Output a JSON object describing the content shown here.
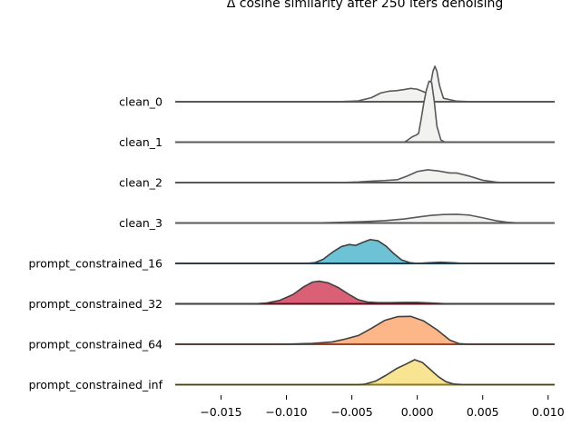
{
  "chart_data": {
    "type": "area",
    "title": "Δ cosine similarity after 250 iters denoising",
    "xlabel": "",
    "ylabel": "",
    "xlim": [
      -0.0185,
      0.0105
    ],
    "xticks": [
      -0.015,
      -0.01,
      -0.005,
      0.0,
      0.005,
      0.01
    ],
    "xtick_labels": [
      "−0.015",
      "−0.010",
      "−0.005",
      "0.000",
      "0.005",
      "0.010"
    ],
    "grid": false,
    "legend": "none",
    "series": [
      {
        "name": "clean_0",
        "fill": "#f2f2f0",
        "line": "#595959",
        "baseline": "#595959",
        "points": [
          [
            -0.0185,
            0
          ],
          [
            -0.006,
            0
          ],
          [
            -0.0045,
            0.03
          ],
          [
            -0.0035,
            0.14
          ],
          [
            -0.0028,
            0.3
          ],
          [
            -0.0022,
            0.36
          ],
          [
            -0.0016,
            0.38
          ],
          [
            -0.001,
            0.42
          ],
          [
            -0.0005,
            0.46
          ],
          [
            0.0,
            0.43
          ],
          [
            0.0004,
            0.36
          ],
          [
            0.0007,
            0.3
          ],
          [
            0.001,
            0.55
          ],
          [
            0.0012,
            1.05
          ],
          [
            0.00135,
            1.22
          ],
          [
            0.0015,
            1.05
          ],
          [
            0.0017,
            0.55
          ],
          [
            0.002,
            0.12
          ],
          [
            0.003,
            0.02
          ],
          [
            0.0045,
            0
          ],
          [
            0.0105,
            0
          ]
        ]
      },
      {
        "name": "clean_1",
        "fill": "#f2f2f0",
        "line": "#595959",
        "baseline": "#595959",
        "points": [
          [
            -0.0185,
            0
          ],
          [
            -0.001,
            0
          ],
          [
            -0.0008,
            0.05
          ],
          [
            -0.0004,
            0.18
          ],
          [
            -0.0001,
            0.24
          ],
          [
            0.0001,
            0.3
          ],
          [
            0.0003,
            0.8
          ],
          [
            0.0005,
            1.35
          ],
          [
            0.0007,
            1.8
          ],
          [
            0.0009,
            2.1
          ],
          [
            0.0011,
            2.05
          ],
          [
            0.0013,
            1.4
          ],
          [
            0.0015,
            0.55
          ],
          [
            0.0018,
            0.08
          ],
          [
            0.0021,
            0
          ],
          [
            0.0105,
            0
          ]
        ]
      },
      {
        "name": "clean_2",
        "fill": "#f2f2f0",
        "line": "#595959",
        "baseline": "#595959",
        "points": [
          [
            -0.0185,
            0
          ],
          [
            -0.006,
            0
          ],
          [
            -0.0045,
            0.02
          ],
          [
            -0.0035,
            0.05
          ],
          [
            -0.0025,
            0.07
          ],
          [
            -0.0015,
            0.1
          ],
          [
            -0.0008,
            0.22
          ],
          [
            0.0,
            0.38
          ],
          [
            0.0008,
            0.44
          ],
          [
            0.0016,
            0.4
          ],
          [
            0.0025,
            0.33
          ],
          [
            0.003,
            0.33
          ],
          [
            0.004,
            0.22
          ],
          [
            0.005,
            0.08
          ],
          [
            0.006,
            0.02
          ],
          [
            0.0065,
            0
          ],
          [
            0.0105,
            0
          ]
        ]
      },
      {
        "name": "clean_3",
        "fill": "#f2f2f0",
        "line": "#595959",
        "baseline": "#595959",
        "points": [
          [
            -0.0185,
            0
          ],
          [
            -0.008,
            0
          ],
          [
            -0.006,
            0.02
          ],
          [
            -0.004,
            0.05
          ],
          [
            -0.0025,
            0.08
          ],
          [
            -0.001,
            0.14
          ],
          [
            0.0,
            0.2
          ],
          [
            0.001,
            0.26
          ],
          [
            0.002,
            0.29
          ],
          [
            0.003,
            0.3
          ],
          [
            0.004,
            0.27
          ],
          [
            0.005,
            0.18
          ],
          [
            0.006,
            0.08
          ],
          [
            0.007,
            0.02
          ],
          [
            0.0078,
            0
          ],
          [
            0.0105,
            0
          ]
        ]
      },
      {
        "name": "prompt_constrained_16",
        "fill": "#6dc2d5",
        "line": "#404040",
        "baseline": "#0e3a57",
        "points": [
          [
            -0.0185,
            0
          ],
          [
            -0.0085,
            0
          ],
          [
            -0.0078,
            0.03
          ],
          [
            -0.0072,
            0.14
          ],
          [
            -0.0065,
            0.38
          ],
          [
            -0.0058,
            0.58
          ],
          [
            -0.0052,
            0.65
          ],
          [
            -0.0047,
            0.62
          ],
          [
            -0.0042,
            0.72
          ],
          [
            -0.0036,
            0.82
          ],
          [
            -0.003,
            0.78
          ],
          [
            -0.0024,
            0.6
          ],
          [
            -0.0018,
            0.34
          ],
          [
            -0.0012,
            0.12
          ],
          [
            -0.0006,
            0.03
          ],
          [
            0.0,
            0
          ],
          [
            0.0008,
            0.02
          ],
          [
            0.0018,
            0.04
          ],
          [
            0.0028,
            0.02
          ],
          [
            0.0035,
            0
          ],
          [
            0.0105,
            0
          ]
        ]
      },
      {
        "name": "prompt_constrained_32",
        "fill": "#d96076",
        "line": "#404040",
        "baseline": "#5a0f1c",
        "points": [
          [
            -0.0185,
            0
          ],
          [
            -0.0125,
            0
          ],
          [
            -0.0115,
            0.03
          ],
          [
            -0.0105,
            0.12
          ],
          [
            -0.0095,
            0.32
          ],
          [
            -0.0087,
            0.58
          ],
          [
            -0.008,
            0.75
          ],
          [
            -0.0075,
            0.78
          ],
          [
            -0.0068,
            0.72
          ],
          [
            -0.006,
            0.55
          ],
          [
            -0.0052,
            0.32
          ],
          [
            -0.0045,
            0.14
          ],
          [
            -0.0038,
            0.06
          ],
          [
            -0.003,
            0.04
          ],
          [
            -0.002,
            0.04
          ],
          [
            -0.001,
            0.05
          ],
          [
            0.0,
            0.05
          ],
          [
            0.001,
            0.03
          ],
          [
            0.0025,
            0
          ],
          [
            0.0105,
            0
          ]
        ]
      },
      {
        "name": "prompt_constrained_64",
        "fill": "#fdb688",
        "line": "#404040",
        "baseline": "#a0431e",
        "points": [
          [
            -0.0185,
            0
          ],
          [
            -0.0105,
            0
          ],
          [
            -0.0095,
            0.01
          ],
          [
            -0.008,
            0.03
          ],
          [
            -0.0065,
            0.08
          ],
          [
            -0.0055,
            0.18
          ],
          [
            -0.0045,
            0.3
          ],
          [
            -0.0035,
            0.55
          ],
          [
            -0.0025,
            0.82
          ],
          [
            -0.0015,
            0.95
          ],
          [
            -0.0005,
            0.96
          ],
          [
            0.0005,
            0.8
          ],
          [
            0.0015,
            0.5
          ],
          [
            0.0025,
            0.14
          ],
          [
            0.0032,
            0.02
          ],
          [
            0.004,
            0
          ],
          [
            0.0105,
            0
          ]
        ]
      },
      {
        "name": "prompt_constrained_inf",
        "fill": "#f9e494",
        "line": "#404040",
        "baseline": "#8c7a1e",
        "points": [
          [
            -0.0185,
            0
          ],
          [
            -0.0045,
            0
          ],
          [
            -0.004,
            0.02
          ],
          [
            -0.0032,
            0.12
          ],
          [
            -0.0024,
            0.32
          ],
          [
            -0.0016,
            0.55
          ],
          [
            -0.0008,
            0.72
          ],
          [
            -0.0002,
            0.86
          ],
          [
            0.0004,
            0.76
          ],
          [
            0.001,
            0.52
          ],
          [
            0.0016,
            0.28
          ],
          [
            0.0022,
            0.1
          ],
          [
            0.0028,
            0.02
          ],
          [
            0.0035,
            0
          ],
          [
            0.0105,
            0
          ]
        ]
      }
    ]
  }
}
